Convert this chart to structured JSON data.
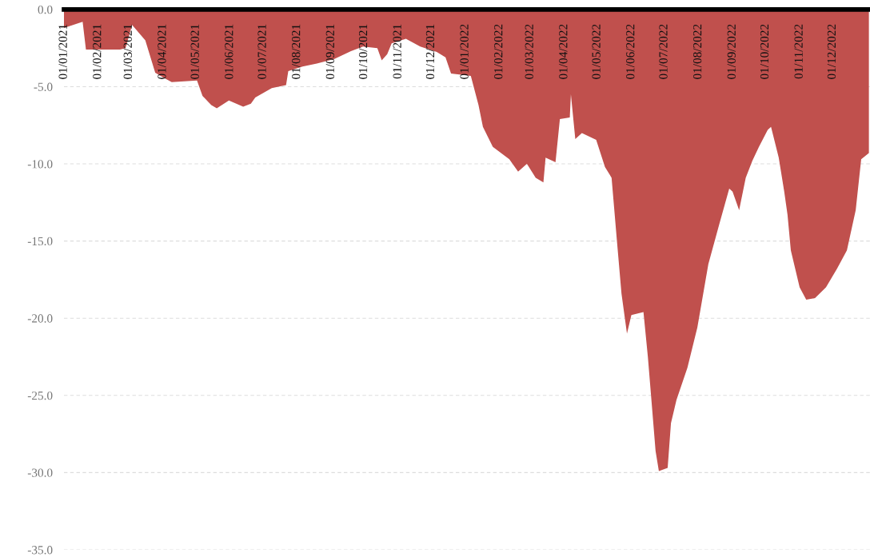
{
  "chart_data": {
    "type": "area",
    "x": [
      "2021-01-01",
      "2021-01-18",
      "2021-01-21",
      "2021-02-21",
      "2021-02-26",
      "2021-03-04",
      "2021-03-16",
      "2021-03-25",
      "2021-04-01",
      "2021-04-09",
      "2021-05-02",
      "2021-05-07",
      "2021-05-15",
      "2021-05-20",
      "2021-05-31",
      "2021-06-13",
      "2021-06-20",
      "2021-06-24",
      "2021-07-09",
      "2021-07-22",
      "2021-07-24",
      "2021-08-06",
      "2021-08-19",
      "2021-09-04",
      "2021-09-19",
      "2021-09-30",
      "2021-10-13",
      "2021-10-17",
      "2021-10-22",
      "2021-10-26",
      "2021-11-08",
      "2021-11-21",
      "2021-12-06",
      "2021-12-14",
      "2021-12-19",
      "2022-01-06",
      "2022-01-13",
      "2022-01-17",
      "2022-01-26",
      "2022-02-10",
      "2022-02-18",
      "2022-02-26",
      "2022-03-06",
      "2022-03-13",
      "2022-03-15",
      "2022-03-24",
      "2022-03-28",
      "2022-04-06",
      "2022-04-07",
      "2022-04-11",
      "2022-04-17",
      "2022-04-30",
      "2022-05-08",
      "2022-05-14",
      "2022-05-19",
      "2022-05-23",
      "2022-05-28",
      "2022-06-01",
      "2022-06-12",
      "2022-06-16",
      "2022-06-19",
      "2022-06-23",
      "2022-06-26",
      "2022-07-04",
      "2022-07-07",
      "2022-07-12",
      "2022-07-22",
      "2022-07-31",
      "2022-08-10",
      "2022-08-20",
      "2022-08-29",
      "2022-09-01",
      "2022-09-07",
      "2022-09-13",
      "2022-09-19",
      "2022-09-25",
      "2022-10-03",
      "2022-10-06",
      "2022-10-13",
      "2022-10-18",
      "2022-10-21",
      "2022-10-24",
      "2022-11-01",
      "2022-11-07",
      "2022-11-15",
      "2022-11-25",
      "2022-12-05",
      "2022-12-14",
      "2022-12-22",
      "2022-12-27",
      "2023-01-03"
    ],
    "series": [
      {
        "color": "#c0504d",
        "values": [
          -1.2,
          -0.8,
          -2.6,
          -2.6,
          -2.5,
          -1.0,
          -2.0,
          -4.1,
          -4.4,
          -4.7,
          -4.6,
          -5.6,
          -6.2,
          -6.4,
          -5.9,
          -6.3,
          -6.1,
          -5.7,
          -5.1,
          -4.9,
          -4.0,
          -3.7,
          -3.5,
          -3.2,
          -2.7,
          -2.4,
          -2.5,
          -3.3,
          -2.9,
          -2.2,
          -1.9,
          -2.4,
          -2.75,
          -3.1,
          -4.15,
          -4.3,
          -6.2,
          -7.6,
          -8.9,
          -9.7,
          -10.5,
          -10.0,
          -10.9,
          -11.2,
          -9.6,
          -9.9,
          -7.1,
          -7.0,
          -5.5,
          -8.4,
          -8.0,
          -8.45,
          -10.2,
          -10.9,
          -15.1,
          -18.4,
          -21.0,
          -19.8,
          -19.6,
          -22.5,
          -25.1,
          -28.6,
          -29.9,
          -29.7,
          -26.8,
          -25.3,
          -23.2,
          -20.6,
          -16.5,
          -13.9,
          -11.6,
          -11.8,
          -13.0,
          -10.9,
          -9.8,
          -8.9,
          -7.8,
          -7.6,
          -9.6,
          -11.8,
          -13.3,
          -15.6,
          -18.0,
          -18.8,
          -18.7,
          -18.0,
          -16.8,
          -15.6,
          -13.0,
          -9.7,
          -9.3
        ]
      }
    ],
    "xlim": [
      "2021-01-01",
      "2023-01-04"
    ],
    "xticks": [
      {
        "value": "2021-01-01",
        "label": "01/01/2021"
      },
      {
        "value": "2021-02-01",
        "label": "01/02/2021"
      },
      {
        "value": "2021-03-01",
        "label": "01/03/2021"
      },
      {
        "value": "2021-04-01",
        "label": "01/04/2021"
      },
      {
        "value": "2021-05-01",
        "label": "01/05/2021"
      },
      {
        "value": "2021-06-01",
        "label": "01/06/2021"
      },
      {
        "value": "2021-07-01",
        "label": "01/07/2021"
      },
      {
        "value": "2021-08-01",
        "label": "01/08/2021"
      },
      {
        "value": "2021-09-01",
        "label": "01/09/2021"
      },
      {
        "value": "2021-10-01",
        "label": "01/10/2021"
      },
      {
        "value": "2021-11-01",
        "label": "01/11/2021"
      },
      {
        "value": "2021-12-01",
        "label": "01/12/2021"
      },
      {
        "value": "2022-01-01",
        "label": "01/01/2022"
      },
      {
        "value": "2022-02-01",
        "label": "01/02/2022"
      },
      {
        "value": "2022-03-01",
        "label": "01/03/2022"
      },
      {
        "value": "2022-04-01",
        "label": "01/04/2022"
      },
      {
        "value": "2022-05-01",
        "label": "01/05/2022"
      },
      {
        "value": "2022-06-01",
        "label": "01/06/2022"
      },
      {
        "value": "2022-07-01",
        "label": "01/07/2022"
      },
      {
        "value": "2022-08-01",
        "label": "01/08/2022"
      },
      {
        "value": "2022-09-01",
        "label": "01/09/2022"
      },
      {
        "value": "2022-10-01",
        "label": "01/10/2022"
      },
      {
        "value": "2022-11-01",
        "label": "01/11/2022"
      },
      {
        "value": "2022-12-01",
        "label": "01/12/2022"
      }
    ],
    "ylim": [
      -35,
      0
    ],
    "yticks": [
      {
        "value": 0,
        "label": "0.0"
      },
      {
        "value": -5,
        "label": "-5.0"
      },
      {
        "value": -10,
        "label": "-10.0"
      },
      {
        "value": -15,
        "label": "-15.0"
      },
      {
        "value": -20,
        "label": "-20.0"
      },
      {
        "value": -25,
        "label": "-25.0"
      },
      {
        "value": -30,
        "label": "-30.0"
      },
      {
        "value": -35,
        "label": "-35.0"
      }
    ],
    "grid": "y"
  }
}
